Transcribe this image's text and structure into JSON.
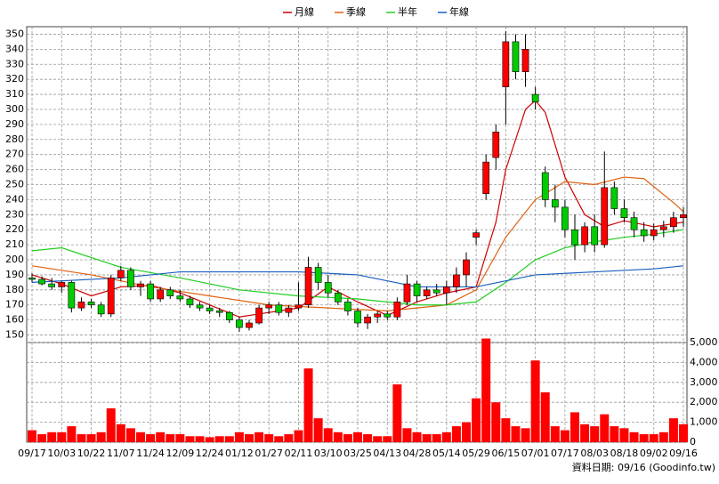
{
  "chart_data": {
    "type": "candlestick",
    "legend": [
      "月線",
      "季線",
      "半年",
      "年線"
    ],
    "footer": "資料日期: 09/16  (Goodinfo.tw)",
    "categories": [
      "09/17",
      null,
      null,
      "10/03",
      null,
      null,
      "10/22",
      null,
      null,
      "11/07",
      null,
      null,
      "11/24",
      null,
      null,
      "12/09",
      null,
      null,
      "12/24",
      null,
      null,
      "01/12",
      null,
      null,
      "01/27",
      null,
      null,
      "02/11",
      null,
      null,
      "03/10",
      null,
      null,
      "03/25",
      null,
      null,
      "04/13",
      null,
      null,
      "04/28",
      null,
      null,
      "05/14",
      null,
      null,
      "05/29",
      null,
      null,
      "06/15",
      null,
      null,
      "07/01",
      null,
      null,
      "07/17",
      null,
      null,
      "08/03",
      null,
      null,
      "08/18",
      null,
      null,
      "09/02",
      null,
      null,
      "09/16"
    ],
    "ohlc": [
      [
        188,
        191,
        185,
        187
      ],
      [
        187,
        189,
        183,
        184
      ],
      [
        184,
        188,
        180,
        182
      ],
      [
        182,
        186,
        178,
        185
      ],
      [
        185,
        186,
        165,
        168
      ],
      [
        168,
        175,
        166,
        172
      ],
      [
        172,
        174,
        168,
        170
      ],
      [
        170,
        172,
        162,
        164
      ],
      [
        164,
        190,
        162,
        188
      ],
      [
        188,
        196,
        186,
        193
      ],
      [
        193,
        195,
        180,
        182
      ],
      [
        182,
        186,
        176,
        184
      ],
      [
        184,
        186,
        172,
        174
      ],
      [
        174,
        182,
        172,
        180
      ],
      [
        180,
        182,
        174,
        176
      ],
      [
        176,
        180,
        172,
        174
      ],
      [
        174,
        176,
        168,
        170
      ],
      [
        170,
        172,
        166,
        168
      ],
      [
        168,
        170,
        164,
        166
      ],
      [
        166,
        168,
        162,
        165
      ],
      [
        165,
        166,
        158,
        160
      ],
      [
        160,
        162,
        152,
        155
      ],
      [
        155,
        160,
        153,
        158
      ],
      [
        158,
        170,
        157,
        168
      ],
      [
        168,
        172,
        164,
        170
      ],
      [
        170,
        172,
        163,
        165
      ],
      [
        165,
        170,
        162,
        168
      ],
      [
        168,
        185,
        166,
        170
      ],
      [
        170,
        202,
        168,
        195
      ],
      [
        195,
        198,
        180,
        185
      ],
      [
        185,
        190,
        175,
        178
      ],
      [
        178,
        180,
        170,
        172
      ],
      [
        172,
        174,
        163,
        166
      ],
      [
        166,
        168,
        155,
        158
      ],
      [
        158,
        164,
        154,
        162
      ],
      [
        162,
        166,
        158,
        164
      ],
      [
        164,
        166,
        160,
        162
      ],
      [
        162,
        175,
        160,
        172
      ],
      [
        172,
        190,
        170,
        184
      ],
      [
        184,
        186,
        172,
        176
      ],
      [
        176,
        182,
        174,
        180
      ],
      [
        180,
        184,
        176,
        178
      ],
      [
        178,
        186,
        170,
        182
      ],
      [
        182,
        195,
        178,
        190
      ],
      [
        190,
        205,
        182,
        200
      ],
      [
        215,
        220,
        210,
        218
      ],
      [
        244,
        270,
        240,
        265
      ],
      [
        268,
        290,
        260,
        285
      ],
      [
        315,
        352,
        290,
        345
      ],
      [
        345,
        350,
        320,
        325
      ],
      [
        325,
        350,
        315,
        340
      ],
      [
        310,
        315,
        300,
        305
      ],
      [
        258,
        262,
        235,
        240
      ],
      [
        240,
        250,
        225,
        235
      ],
      [
        235,
        240,
        215,
        220
      ],
      [
        220,
        230,
        200,
        210
      ],
      [
        210,
        225,
        205,
        222
      ],
      [
        222,
        230,
        205,
        210
      ],
      [
        210,
        272,
        208,
        248
      ],
      [
        248,
        252,
        230,
        234
      ],
      [
        234,
        240,
        225,
        228
      ],
      [
        228,
        232,
        215,
        220
      ],
      [
        220,
        225,
        212,
        216
      ],
      [
        216,
        224,
        213,
        220
      ],
      [
        220,
        226,
        215,
        222
      ],
      [
        222,
        232,
        218,
        228
      ],
      [
        228,
        235,
        222,
        230
      ]
    ],
    "up_color": "#ff0000",
    "down_color": "#00cc00",
    "volume": [
      600,
      400,
      500,
      500,
      800,
      400,
      400,
      500,
      1700,
      900,
      700,
      500,
      400,
      500,
      400,
      400,
      300,
      300,
      250,
      300,
      300,
      500,
      400,
      500,
      400,
      300,
      400,
      600,
      3700,
      1200,
      700,
      500,
      400,
      500,
      400,
      300,
      300,
      2900,
      700,
      500,
      400,
      400,
      500,
      800,
      1000,
      2200,
      5200,
      2000,
      1200,
      800,
      700,
      4100,
      2500,
      800,
      600,
      1500,
      900,
      800,
      1400,
      800,
      700,
      500,
      400,
      400,
      500,
      1200,
      900
    ],
    "volume_color": "#ff0000",
    "series": [
      {
        "name": "月線",
        "color": "#cc0000",
        "x": [
          0,
          3,
          6,
          9,
          12,
          15,
          18,
          21,
          24,
          27,
          30,
          33,
          36,
          39,
          42,
          45,
          47,
          48,
          50,
          51,
          52,
          54,
          56,
          58,
          60,
          63,
          66
        ],
        "values": [
          190,
          184,
          176,
          182,
          183,
          178,
          170,
          162,
          165,
          168,
          182,
          172,
          163,
          172,
          178,
          182,
          225,
          260,
          300,
          306,
          298,
          255,
          230,
          222,
          226,
          222,
          225
        ]
      },
      {
        "name": "季線",
        "color": "#e06010",
        "x": [
          0,
          6,
          12,
          18,
          24,
          30,
          36,
          42,
          45,
          48,
          51,
          54,
          57,
          60,
          62,
          65,
          66
        ],
        "values": [
          196,
          190,
          182,
          176,
          170,
          168,
          166,
          170,
          180,
          215,
          240,
          252,
          250,
          255,
          254,
          238,
          232
        ]
      },
      {
        "name": "半年",
        "color": "#22cc22",
        "x": [
          0,
          3,
          9,
          15,
          21,
          27,
          33,
          39,
          42,
          45,
          48,
          51,
          54,
          57,
          60,
          63,
          66
        ],
        "values": [
          206,
          208,
          195,
          188,
          180,
          176,
          174,
          170,
          170,
          172,
          185,
          200,
          208,
          212,
          215,
          217,
          220
        ]
      },
      {
        "name": "年線",
        "color": "#1a5fc0",
        "x": [
          0,
          9,
          15,
          21,
          27,
          33,
          39,
          45,
          51,
          57,
          63,
          66
        ],
        "values": [
          185,
          188,
          192,
          192,
          192,
          190,
          182,
          182,
          190,
          192,
          194,
          196
        ]
      }
    ],
    "ylim": [
      145,
      355
    ],
    "yticks": [
      150,
      160,
      170,
      180,
      190,
      200,
      210,
      220,
      230,
      240,
      250,
      260,
      270,
      280,
      290,
      300,
      310,
      320,
      330,
      340,
      350
    ],
    "y2lim": [
      0,
      5000
    ],
    "y2ticks": [
      0,
      {
        "value": 1000,
        "label": "1,000"
      },
      {
        "value": 2000,
        "label": "2,000"
      },
      {
        "value": 3000,
        "label": "3,000"
      },
      {
        "value": 4000,
        "label": "4,000"
      },
      {
        "value": 5000,
        "label": "5,000"
      }
    ],
    "grid": true
  }
}
